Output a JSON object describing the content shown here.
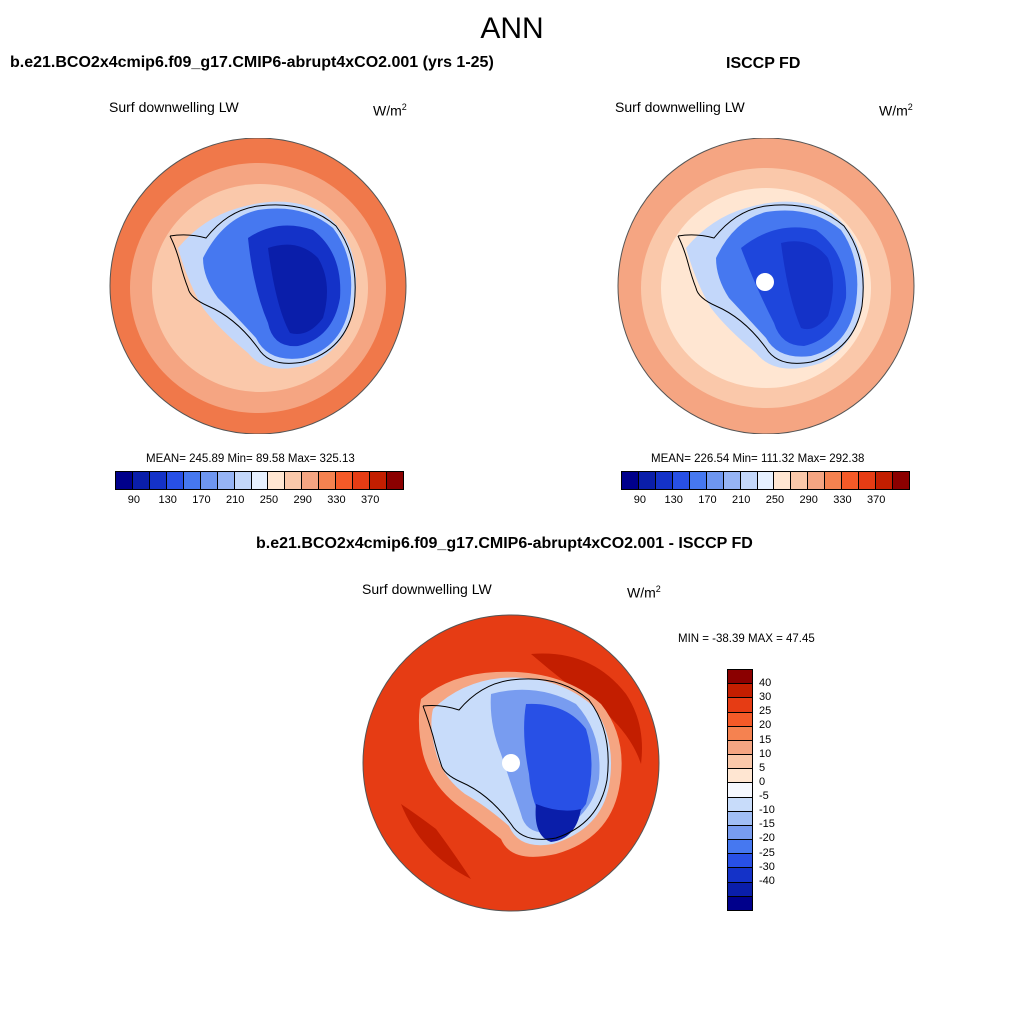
{
  "title": "ANN",
  "panels": {
    "model": {
      "title": "b.e21.BCO2x4cmip6.f09_g17.CMIP6-abrupt4xCO2.001 (yrs 1-25)",
      "variable": "Surf downwelling LW",
      "units_base": "W/m",
      "units_exp": "2",
      "stats": "MEAN= 245.89  Min=  89.58  Max= 325.13",
      "mean": 245.89,
      "min": 89.58,
      "max": 325.13
    },
    "obs": {
      "title": "ISCCP FD",
      "variable": "Surf downwelling LW",
      "units_base": "W/m",
      "units_exp": "2",
      "stats": "MEAN= 226.54  Min= 111.32  Max= 292.38",
      "mean": 226.54,
      "min": 111.32,
      "max": 292.38
    },
    "diff": {
      "title": "b.e21.BCO2x4cmip6.f09_g17.CMIP6-abrupt4xCO2.001 - ISCCP FD",
      "variable": "Surf downwelling LW",
      "units": "W/m",
      "units_exp": "2",
      "stats": "MIN = -38.39 MAX =  47.45",
      "min": -38.39,
      "max": 47.45
    }
  },
  "colorbar_abs": {
    "colors": [
      "#00008b",
      "#0a1eaa",
      "#1432c8",
      "#2850e6",
      "#4678f0",
      "#6e96f0",
      "#96b4f5",
      "#c3d7fa",
      "#e6f0ff",
      "#ffe6d2",
      "#fac8aa",
      "#f5a582",
      "#f58250",
      "#f55a28",
      "#e63c14",
      "#c31e00",
      "#8b0000"
    ],
    "ticks": [
      "90",
      "130",
      "170",
      "210",
      "250",
      "290",
      "330",
      "370"
    ]
  },
  "colorbar_diff": {
    "colors": [
      "#8b0000",
      "#c31e00",
      "#e63c14",
      "#f55a28",
      "#f58250",
      "#f5a582",
      "#fac8aa",
      "#ffe6d2",
      "#f5f8ff",
      "#c8dcfa",
      "#a0bef5",
      "#789cf0",
      "#4678f0",
      "#2850e6",
      "#1432c8",
      "#0a1eaa",
      "#00008b"
    ],
    "ticks": [
      "40",
      "30",
      "25",
      "20",
      "15",
      "10",
      "5",
      "0",
      "-5",
      "-10",
      "-15",
      "-20",
      "-25",
      "-30",
      "-40"
    ]
  },
  "maps": {
    "model": {
      "outer": "#f0784a",
      "mid": "#f5a582",
      "ring": "#fac8aa",
      "pale": "#c3d7fa",
      "ice": "#4678f0",
      "core": "#1432c8",
      "deep": "#0a1eaa"
    },
    "obs": {
      "outer": "#f5a582",
      "mid": "#fac8aa",
      "ring": "#ffe6d2",
      "pale": "#c3d7fa",
      "ice": "#4678f0",
      "core": "#1e46dc",
      "deep": "#1432c8"
    },
    "diff": {
      "outer": "#e63c14",
      "mid": "#c31e00",
      "ring": "#f5a582",
      "pale": "#c8dcfa",
      "ice": "#789cf0",
      "core": "#2850e6",
      "deep": "#0a1eaa"
    }
  }
}
